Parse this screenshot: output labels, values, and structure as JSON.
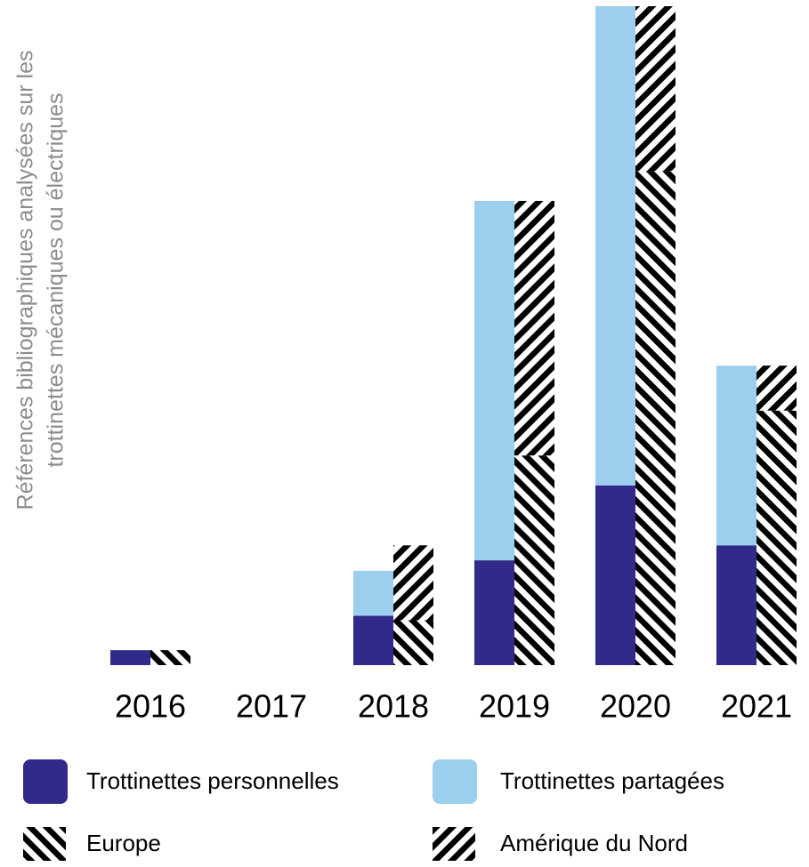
{
  "chart_data": {
    "type": "bar",
    "ylabel_lines": [
      "Références bibliographiques analysées sur les",
      "trottinettes mécaniques ou électriques"
    ],
    "xlabel": "",
    "categories": [
      "2016",
      "2017",
      "2018",
      "2019",
      "2020",
      "2021"
    ],
    "ylim": [
      0,
      44
    ],
    "grid": false,
    "groups": [
      {
        "name": "type",
        "series": [
          {
            "name": "Trottinettes personnelles",
            "color": "#312a8a",
            "pattern": "solid",
            "values": [
              1,
              0,
              3.3,
              7,
              12,
              8
            ]
          },
          {
            "name": "Trottinettes partagées",
            "color": "#9ccfee",
            "pattern": "solid",
            "values": [
              0,
              0,
              3,
              24,
              32,
              12
            ]
          }
        ]
      },
      {
        "name": "region",
        "series": [
          {
            "name": "Europe",
            "color": "#000000",
            "pattern": "hatch-back",
            "values": [
              1,
              0,
              3,
              14,
              33,
              17
            ]
          },
          {
            "name": "Amérique du Nord",
            "color": "#000000",
            "pattern": "hatch-fwd",
            "values": [
              0,
              0,
              5,
              17,
              11,
              3
            ]
          }
        ]
      }
    ],
    "legend": {
      "position": "bottom",
      "items": [
        {
          "label": "Trottinettes personnelles",
          "swatch": "solid",
          "color": "#312a8a"
        },
        {
          "label": "Trottinettes partagées",
          "swatch": "solid",
          "color": "#9ccfee"
        },
        {
          "label": "Europe",
          "swatch": "hatch-back",
          "color": "#000000"
        },
        {
          "label": "Amérique du Nord",
          "swatch": "hatch-fwd",
          "color": "#000000"
        }
      ]
    }
  }
}
